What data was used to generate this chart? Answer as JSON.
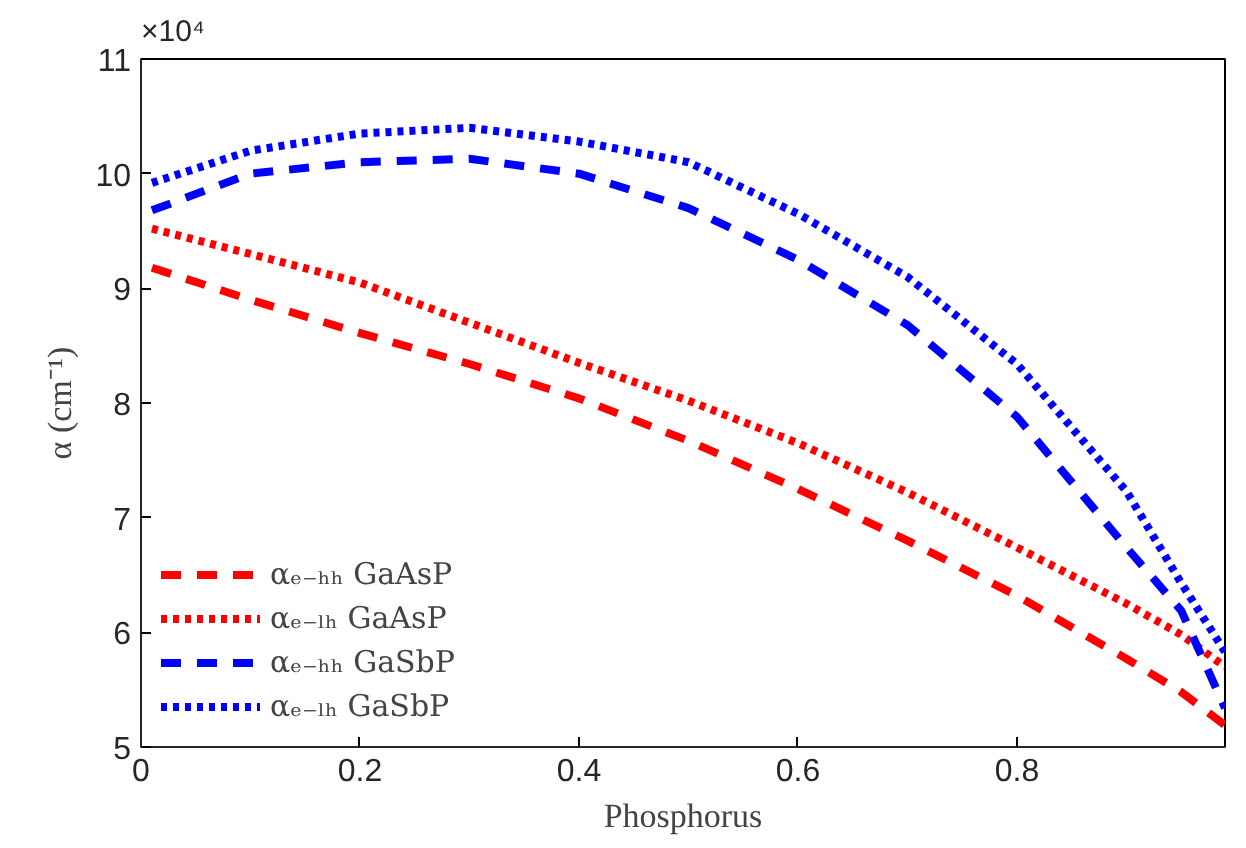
{
  "chart_data": {
    "type": "line",
    "xlabel": "Phosphorus",
    "ylabel": "α (cm⁻¹)",
    "annotations": [
      "×10⁴"
    ],
    "xlim": [
      0,
      0.99
    ],
    "xticks": [
      0,
      0.2,
      0.4,
      0.6,
      0.8
    ],
    "ylim": [
      5,
      11
    ],
    "yticks": [
      5,
      6,
      7,
      8,
      9,
      10,
      11
    ],
    "grid": false,
    "legend": "bottom left",
    "x": [
      0.01,
      0.1,
      0.2,
      0.3,
      0.4,
      0.5,
      0.6,
      0.7,
      0.8,
      0.9,
      0.95,
      0.99
    ],
    "series": [
      {
        "name": "αₑ₋ₕₕ GaAsP",
        "color": "#ff0000",
        "line_style": "dashed",
        "values": [
          9.18,
          8.9,
          8.61,
          8.34,
          8.04,
          7.67,
          7.25,
          6.8,
          6.32,
          5.77,
          5.48,
          5.19
        ]
      },
      {
        "name": "αₑ₋ₗₕ GaAsP",
        "color": "#ff0000",
        "line_style": "dotted",
        "values": [
          9.52,
          9.3,
          9.05,
          8.7,
          8.35,
          8.02,
          7.65,
          7.22,
          6.74,
          6.25,
          5.98,
          5.7
        ]
      },
      {
        "name": "αₑ₋ₕₕ GaSbP",
        "color": "#0000ff",
        "line_style": "dashed",
        "values": [
          9.68,
          10.0,
          10.1,
          10.13,
          10.0,
          9.7,
          9.25,
          8.68,
          7.88,
          6.74,
          6.19,
          5.34
        ]
      },
      {
        "name": "αₑ₋ₗₕ GaSbP",
        "color": "#0000ff",
        "line_style": "dotted",
        "values": [
          9.92,
          10.2,
          10.35,
          10.4,
          10.28,
          10.1,
          9.65,
          9.1,
          8.34,
          7.23,
          6.43,
          5.83
        ]
      }
    ]
  }
}
